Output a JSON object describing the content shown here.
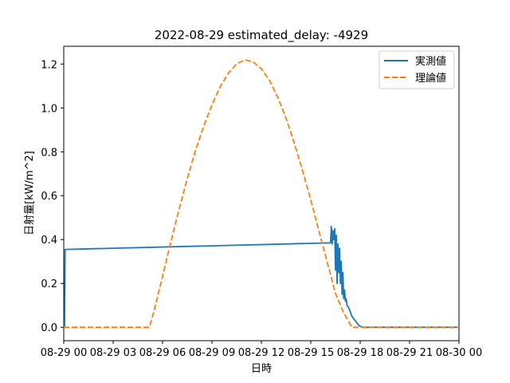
{
  "chart_data": {
    "type": "line",
    "title": "2022-08-29 estimated_delay: -4929",
    "xlabel": "日時",
    "ylabel": "日射量[kW/m^2]",
    "xlim": [
      0,
      24
    ],
    "ylim": [
      -0.061,
      1.281
    ],
    "x_ticks": [
      0,
      3,
      6,
      9,
      12,
      15,
      18,
      21,
      24
    ],
    "x_tick_labels": [
      "08-29 00",
      "08-29 03",
      "08-29 06",
      "08-29 09",
      "08-29 12",
      "08-29 15",
      "08-29 18",
      "08-29 21",
      "08-30 00"
    ],
    "y_ticks": [
      0.0,
      0.2,
      0.4,
      0.6,
      0.8,
      1.0,
      1.2
    ],
    "y_tick_labels": [
      "0.0",
      "0.2",
      "0.4",
      "0.6",
      "0.8",
      "1.0",
      "1.2"
    ],
    "legend_position": "top-right",
    "grid": false,
    "series": [
      {
        "name": "実測値",
        "color": "#1f77b4",
        "style": "solid",
        "x": [
          0,
          0.05,
          0.08,
          16.2,
          16.25,
          16.3,
          16.35,
          16.4,
          16.45,
          16.5,
          16.55,
          16.6,
          16.65,
          16.7,
          16.75,
          16.8,
          16.85,
          16.9,
          16.95,
          17.0,
          17.05,
          17.1,
          17.15,
          17.2,
          17.3,
          17.4,
          17.5,
          17.6,
          17.7,
          17.8,
          17.9,
          18.0,
          18.1,
          18.2,
          18.3,
          18.5,
          19.0,
          24.0
        ],
        "y": [
          0.0,
          0.0,
          0.355,
          0.385,
          0.46,
          0.38,
          0.44,
          0.4,
          0.45,
          0.26,
          0.42,
          0.2,
          0.38,
          0.25,
          0.36,
          0.2,
          0.3,
          0.15,
          0.25,
          0.13,
          0.17,
          0.12,
          0.13,
          0.1,
          0.09,
          0.07,
          0.05,
          0.04,
          0.03,
          0.02,
          0.01,
          0.005,
          0.002,
          0.0,
          0.0,
          0.0,
          0.0,
          0.0
        ]
      },
      {
        "name": "理論値",
        "color": "#ff7f0e",
        "style": "dashed",
        "x": [
          0,
          5.2,
          5.5,
          6.0,
          6.5,
          7.0,
          7.5,
          8.0,
          8.5,
          9.0,
          9.5,
          10.0,
          10.5,
          11.0,
          11.5,
          12.0,
          12.5,
          13.0,
          13.5,
          14.0,
          14.5,
          15.0,
          15.5,
          16.0,
          16.5,
          17.0,
          17.5,
          18.0,
          18.5,
          18.8,
          24
        ],
        "y": [
          0.0,
          0.0,
          0.08,
          0.232,
          0.388,
          0.538,
          0.678,
          0.806,
          0.918,
          1.014,
          1.097,
          1.159,
          1.201,
          1.219,
          1.21,
          1.178,
          1.125,
          1.047,
          0.953,
          0.84,
          0.714,
          0.581,
          0.438,
          0.296,
          0.155,
          0.066,
          0.0,
          0.0,
          0.0,
          0.0,
          0.0
        ]
      }
    ]
  }
}
